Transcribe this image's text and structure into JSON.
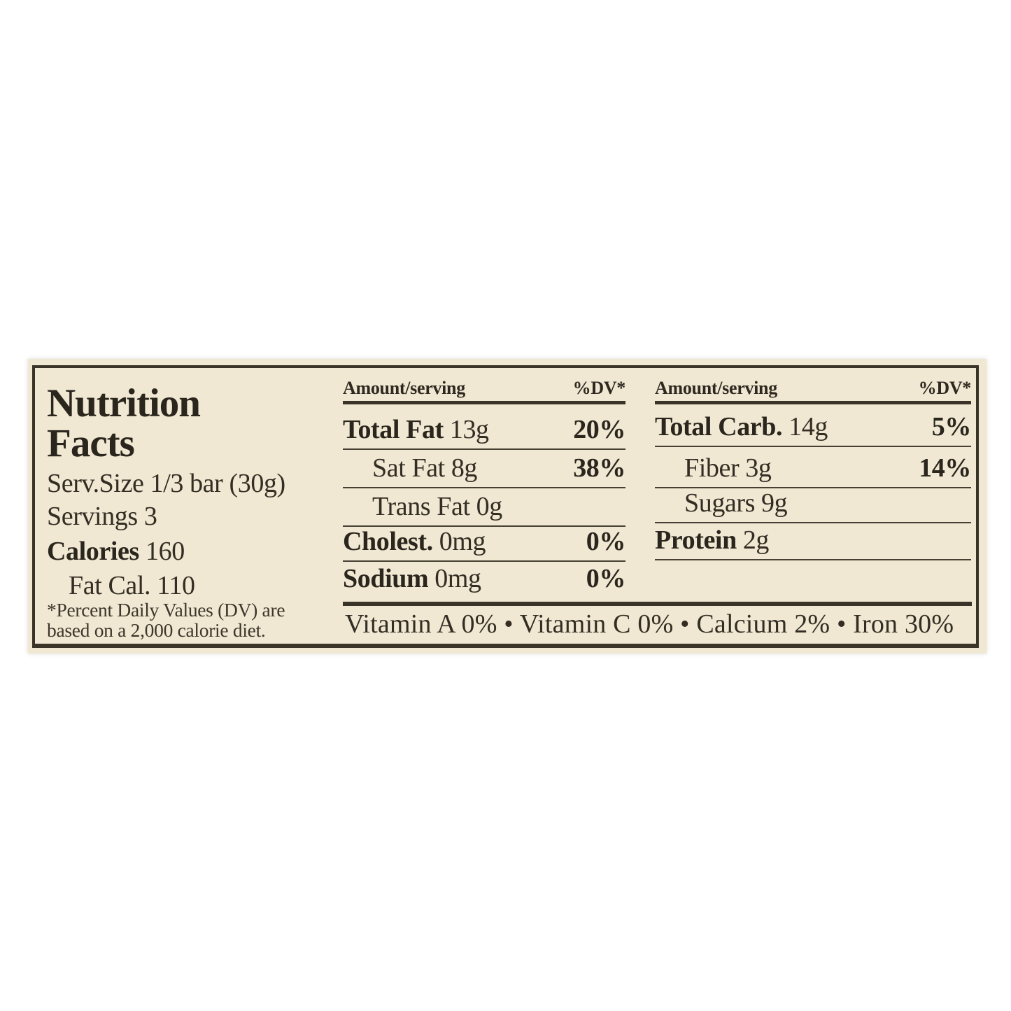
{
  "colors": {
    "page_background": "#ffffff",
    "label_background": "#f0e8d2",
    "ink": "#332d24",
    "rule": "#3a3428"
  },
  "label": {
    "title_line1": "Nutrition",
    "title_line2": "Facts",
    "left": {
      "serving_size": "Serv.Size 1/3 bar (30g)",
      "servings": "Servings 3",
      "calories_label": "Calories",
      "calories_value": "160",
      "fat_calories": "Fat Cal. 110",
      "footnote_line1": "*Percent Daily Values (DV) are",
      "footnote_line2": "based on a 2,000 calorie diet."
    },
    "columns": [
      {
        "header": {
          "amount": "Amount/serving",
          "dv": "%DV*"
        },
        "rows": [
          {
            "name": "Total Fat",
            "amount": "13g",
            "dv": "20%"
          },
          {
            "name": "Sat Fat",
            "amount": "8g",
            "dv": "38%"
          },
          {
            "name": "Trans Fat",
            "amount": "0g",
            "dv": ""
          },
          {
            "name": "Cholest.",
            "amount": "0mg",
            "dv": "0%"
          },
          {
            "name": "Sodium",
            "amount": "0mg",
            "dv": "0%"
          }
        ]
      },
      {
        "header": {
          "amount": "Amount/serving",
          "dv": "%DV*"
        },
        "rows": [
          {
            "name": "Total Carb.",
            "amount": "14g",
            "dv": "5%"
          },
          {
            "name": "Fiber",
            "amount": "3g",
            "dv": "14%"
          },
          {
            "name": "Sugars",
            "amount": "9g",
            "dv": ""
          },
          {
            "name": "Protein",
            "amount": "2g",
            "dv": ""
          }
        ]
      }
    ],
    "vitamins_line": "Vitamin A 0% • Vitamin C 0% • Calcium 2% • Iron 30%"
  }
}
